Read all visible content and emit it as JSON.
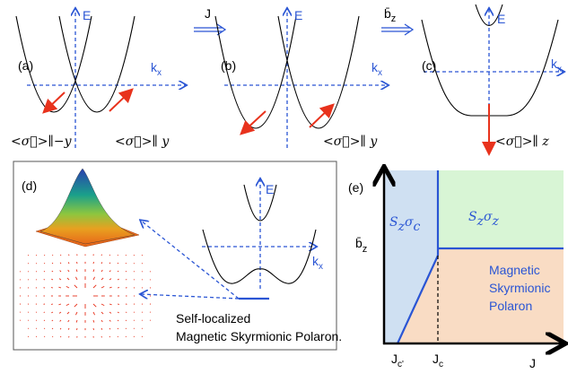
{
  "panels": {
    "a": {
      "label": "(a)",
      "energy": "E",
      "momentum": {
        "base": "k",
        "sub": "x"
      },
      "spin_left": "<σ⃗>∥−y",
      "spin_right": "<σ⃗>∥ y"
    },
    "b": {
      "label": "(b)",
      "energy": "E",
      "momentum": {
        "base": "k",
        "sub": "x"
      },
      "spin": "<σ⃗>∥ y"
    },
    "c": {
      "label": "(c)",
      "energy": "E",
      "momentum": {
        "base": "k",
        "sub": "x"
      },
      "spin": "<σ⃗>∥ z"
    },
    "d": {
      "label": "(d)",
      "energy": "E",
      "momentum": {
        "base": "k",
        "sub": "x"
      },
      "caption": [
        "Self-localized",
        "Magnetic Skyrmionic Polaron."
      ]
    },
    "e": {
      "label": "(e)",
      "y_axis": {
        "base": "b̄",
        "sub": "z"
      },
      "x_axis": "J",
      "left_phase": [
        {
          "base": "S",
          "sub": "z"
        },
        {
          "base": "σ",
          "sub": "c"
        }
      ],
      "upper_phase": [
        {
          "base": "S",
          "sub": "z"
        },
        {
          "base": "σ",
          "sub": "z"
        }
      ],
      "lower_phase": [
        "Magnetic",
        "Skyrmionic",
        "Polaron"
      ],
      "ticks": [
        {
          "base": "J",
          "sub": "c'"
        },
        {
          "base": "J",
          "sub": "c"
        }
      ]
    }
  },
  "arrows": [
    {
      "label": "J"
    },
    {
      "base": "b̄",
      "sub": "z"
    }
  ]
}
